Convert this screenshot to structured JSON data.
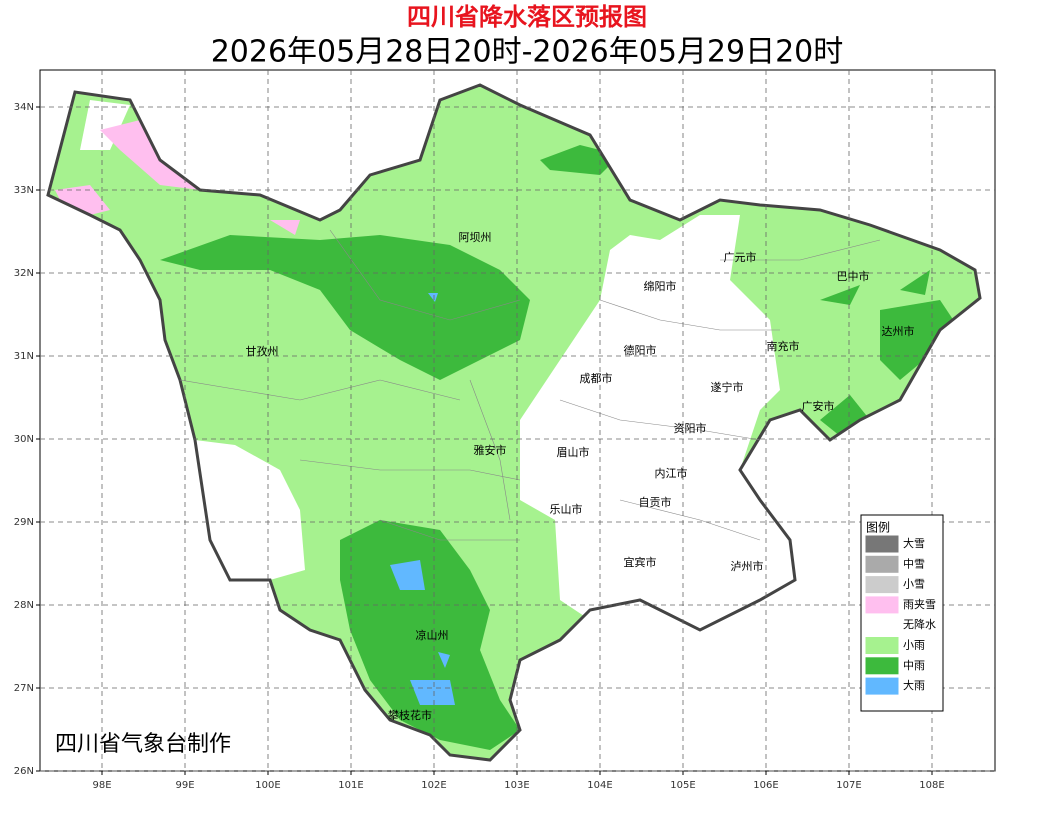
{
  "header": {
    "title": "四川省降水落区预报图",
    "subtitle": "2026年05月28日20时-2026年05月29日20时"
  },
  "map": {
    "lat_ticks": [
      {
        "value": 34,
        "label": "34N"
      },
      {
        "value": 33,
        "label": "33N"
      },
      {
        "value": 32,
        "label": "32N"
      },
      {
        "value": 31,
        "label": "31N"
      },
      {
        "value": 30,
        "label": "30N"
      },
      {
        "value": 29,
        "label": "29N"
      },
      {
        "value": 28,
        "label": "28N"
      },
      {
        "value": 27,
        "label": "27N"
      },
      {
        "value": 26,
        "label": "26N"
      }
    ],
    "lon_ticks": [
      {
        "value": 98,
        "label": "98E"
      },
      {
        "value": 99,
        "label": "99E"
      },
      {
        "value": 100,
        "label": "100E"
      },
      {
        "value": 101,
        "label": "101E"
      },
      {
        "value": 102,
        "label": "102E"
      },
      {
        "value": 103,
        "label": "103E"
      },
      {
        "value": 104,
        "label": "104E"
      },
      {
        "value": 105,
        "label": "105E"
      },
      {
        "value": 106,
        "label": "106E"
      },
      {
        "value": 107,
        "label": "107E"
      },
      {
        "value": 108,
        "label": "108E"
      }
    ],
    "cities": [
      "阿坝州",
      "绵阳市",
      "广元市",
      "巴中市",
      "甘孜州",
      "德阳市",
      "达州市",
      "南充市",
      "成都市",
      "遂宁市",
      "广安市",
      "资阳市",
      "雅安市",
      "眉山市",
      "内江市",
      "自贡市",
      "乐山市",
      "宜宾市",
      "泸州市",
      "凉山州",
      "攀枝花市"
    ]
  },
  "legend": {
    "title": "图例",
    "items": [
      {
        "label": "大雪",
        "color": "#777777"
      },
      {
        "label": "中雪",
        "color": "#aaaaaa"
      },
      {
        "label": "小雪",
        "color": "#cccccc"
      },
      {
        "label": "雨夹雪",
        "color": "#ffbfef"
      },
      {
        "label": "无降水",
        "color": "#ffffff"
      },
      {
        "label": "小雨",
        "color": "#a6f28f"
      },
      {
        "label": "中雨",
        "color": "#3dba3d"
      },
      {
        "label": "大雨",
        "color": "#61b8ff"
      }
    ]
  },
  "footer": {
    "credit": "四川省气象台制作"
  }
}
